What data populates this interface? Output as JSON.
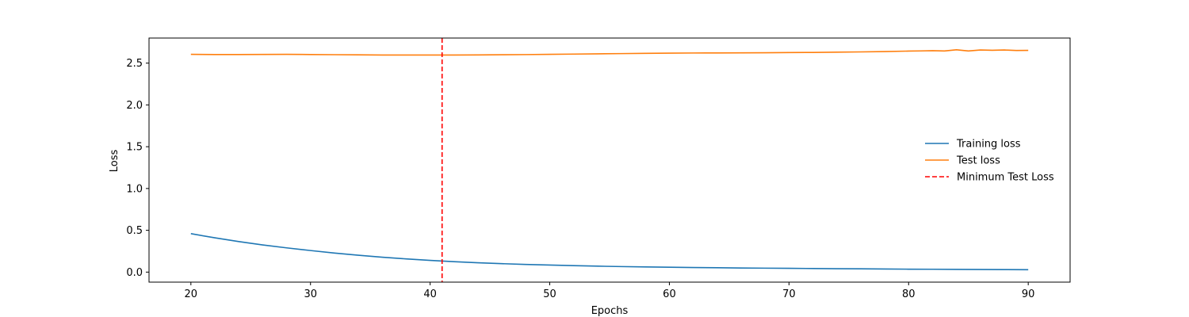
{
  "chart_data": {
    "type": "line",
    "title": "",
    "xlabel": "Epochs",
    "ylabel": "Loss",
    "xlim": [
      16.5,
      93.5
    ],
    "ylim": [
      -0.12,
      2.8
    ],
    "xticks": [
      20,
      30,
      40,
      50,
      60,
      70,
      80,
      90
    ],
    "yticks": [
      0.0,
      0.5,
      1.0,
      1.5,
      2.0,
      2.5
    ],
    "xtick_labels": [
      "20",
      "30",
      "40",
      "50",
      "60",
      "70",
      "80",
      "90"
    ],
    "ytick_labels": [
      "0.0",
      "0.5",
      "1.0",
      "1.5",
      "2.0",
      "2.5"
    ],
    "grid": false,
    "legend_position": "center-right",
    "series": [
      {
        "name": "Training loss",
        "color": "#1f77b4",
        "style": "solid",
        "x": [
          20,
          22,
          24,
          26,
          28,
          30,
          32,
          34,
          36,
          38,
          40,
          42,
          44,
          46,
          48,
          50,
          52,
          54,
          56,
          58,
          60,
          62,
          64,
          66,
          68,
          70,
          72,
          74,
          76,
          78,
          80,
          82,
          84,
          86,
          88,
          90
        ],
        "values": [
          0.46,
          0.41,
          0.365,
          0.325,
          0.29,
          0.258,
          0.228,
          0.202,
          0.178,
          0.158,
          0.14,
          0.125,
          0.112,
          0.101,
          0.092,
          0.084,
          0.077,
          0.071,
          0.066,
          0.062,
          0.058,
          0.055,
          0.052,
          0.049,
          0.047,
          0.045,
          0.043,
          0.041,
          0.039,
          0.037,
          0.035,
          0.034,
          0.032,
          0.031,
          0.03,
          0.029
        ]
      },
      {
        "name": "Test loss",
        "color": "#ff7f0e",
        "style": "solid",
        "x": [
          20,
          22,
          24,
          26,
          28,
          30,
          32,
          34,
          36,
          38,
          40,
          42,
          44,
          46,
          48,
          50,
          52,
          54,
          56,
          58,
          60,
          62,
          64,
          66,
          68,
          70,
          72,
          74,
          76,
          78,
          80,
          81,
          82,
          83,
          84,
          85,
          86,
          87,
          88,
          89,
          90
        ],
        "values": [
          2.605,
          2.603,
          2.603,
          2.604,
          2.605,
          2.603,
          2.601,
          2.599,
          2.597,
          2.597,
          2.597,
          2.597,
          2.598,
          2.6,
          2.602,
          2.605,
          2.608,
          2.611,
          2.614,
          2.617,
          2.619,
          2.621,
          2.622,
          2.623,
          2.624,
          2.626,
          2.628,
          2.631,
          2.634,
          2.638,
          2.644,
          2.646,
          2.649,
          2.645,
          2.66,
          2.645,
          2.657,
          2.654,
          2.657,
          2.651,
          2.652
        ]
      },
      {
        "name": "Minimum Test Loss",
        "color": "#ff0000",
        "style": "dashed",
        "vline_x": 41
      }
    ]
  }
}
